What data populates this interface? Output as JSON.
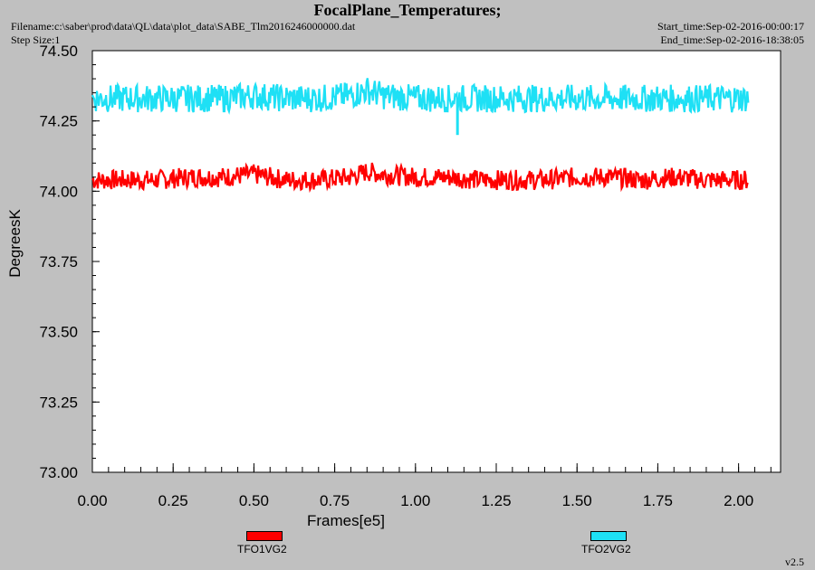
{
  "header": {
    "title": "FocalPlane_Temperatures;",
    "filename": "Filename:c:\\saber\\prod\\data\\QL\\data\\plot_data\\SABE_Tlm2016246000000.dat",
    "step_size": "Step Size:1",
    "start_time": "Start_time:Sep-02-2016-00:00:17",
    "end_time": "End_time:Sep-02-2016-18:38:05"
  },
  "footer": {
    "version": "v2.5"
  },
  "colors": {
    "background": "#c0c0c0",
    "plot_area": "#ffffff",
    "series_1": "#ff0000",
    "series_2": "#1ee0f5"
  },
  "chart_data": {
    "type": "line",
    "title": "FocalPlane_Temperatures;",
    "xlabel": "Frames[e5]",
    "ylabel": "DegreesK",
    "xlim": [
      0.0,
      2.13
    ],
    "ylim": [
      73.0,
      74.5
    ],
    "x_ticks": [
      "0.00",
      "0.25",
      "0.50",
      "0.75",
      "1.00",
      "1.25",
      "1.50",
      "1.75",
      "2.00"
    ],
    "y_ticks": [
      "73.00",
      "73.25",
      "73.50",
      "73.75",
      "74.00",
      "74.25",
      "74.50"
    ],
    "grid": false,
    "legend_position": "bottom",
    "series": [
      {
        "name": "TFO1VG2",
        "color": "#ff0000",
        "x": [
          0.0,
          0.1,
          0.2,
          0.3,
          0.4,
          0.5,
          0.6,
          0.7,
          0.8,
          0.85,
          0.9,
          1.0,
          1.1,
          1.2,
          1.3,
          1.4,
          1.5,
          1.6,
          1.7,
          1.8,
          1.9,
          2.0,
          2.03
        ],
        "y_center": [
          74.04,
          74.04,
          74.04,
          74.05,
          74.05,
          74.06,
          74.04,
          74.04,
          74.05,
          74.07,
          74.06,
          74.05,
          74.05,
          74.04,
          74.04,
          74.04,
          74.05,
          74.05,
          74.04,
          74.05,
          74.04,
          74.04,
          74.04
        ],
        "y_min": 73.98,
        "y_max": 74.11
      },
      {
        "name": "TFO2VG2",
        "color": "#1ee0f5",
        "x": [
          0.0,
          0.1,
          0.2,
          0.3,
          0.4,
          0.5,
          0.6,
          0.7,
          0.8,
          0.85,
          0.9,
          1.0,
          1.1,
          1.2,
          1.3,
          1.4,
          1.5,
          1.6,
          1.7,
          1.8,
          1.9,
          2.0,
          2.03
        ],
        "y_center": [
          74.33,
          74.33,
          74.33,
          74.33,
          74.33,
          74.34,
          74.33,
          74.33,
          74.34,
          74.36,
          74.34,
          74.33,
          74.33,
          74.33,
          74.33,
          74.33,
          74.33,
          74.33,
          74.33,
          74.33,
          74.33,
          74.33,
          74.33
        ],
        "y_min": 74.2,
        "y_max": 74.38,
        "spike": {
          "x": 1.13,
          "y": 74.2
        }
      }
    ]
  }
}
